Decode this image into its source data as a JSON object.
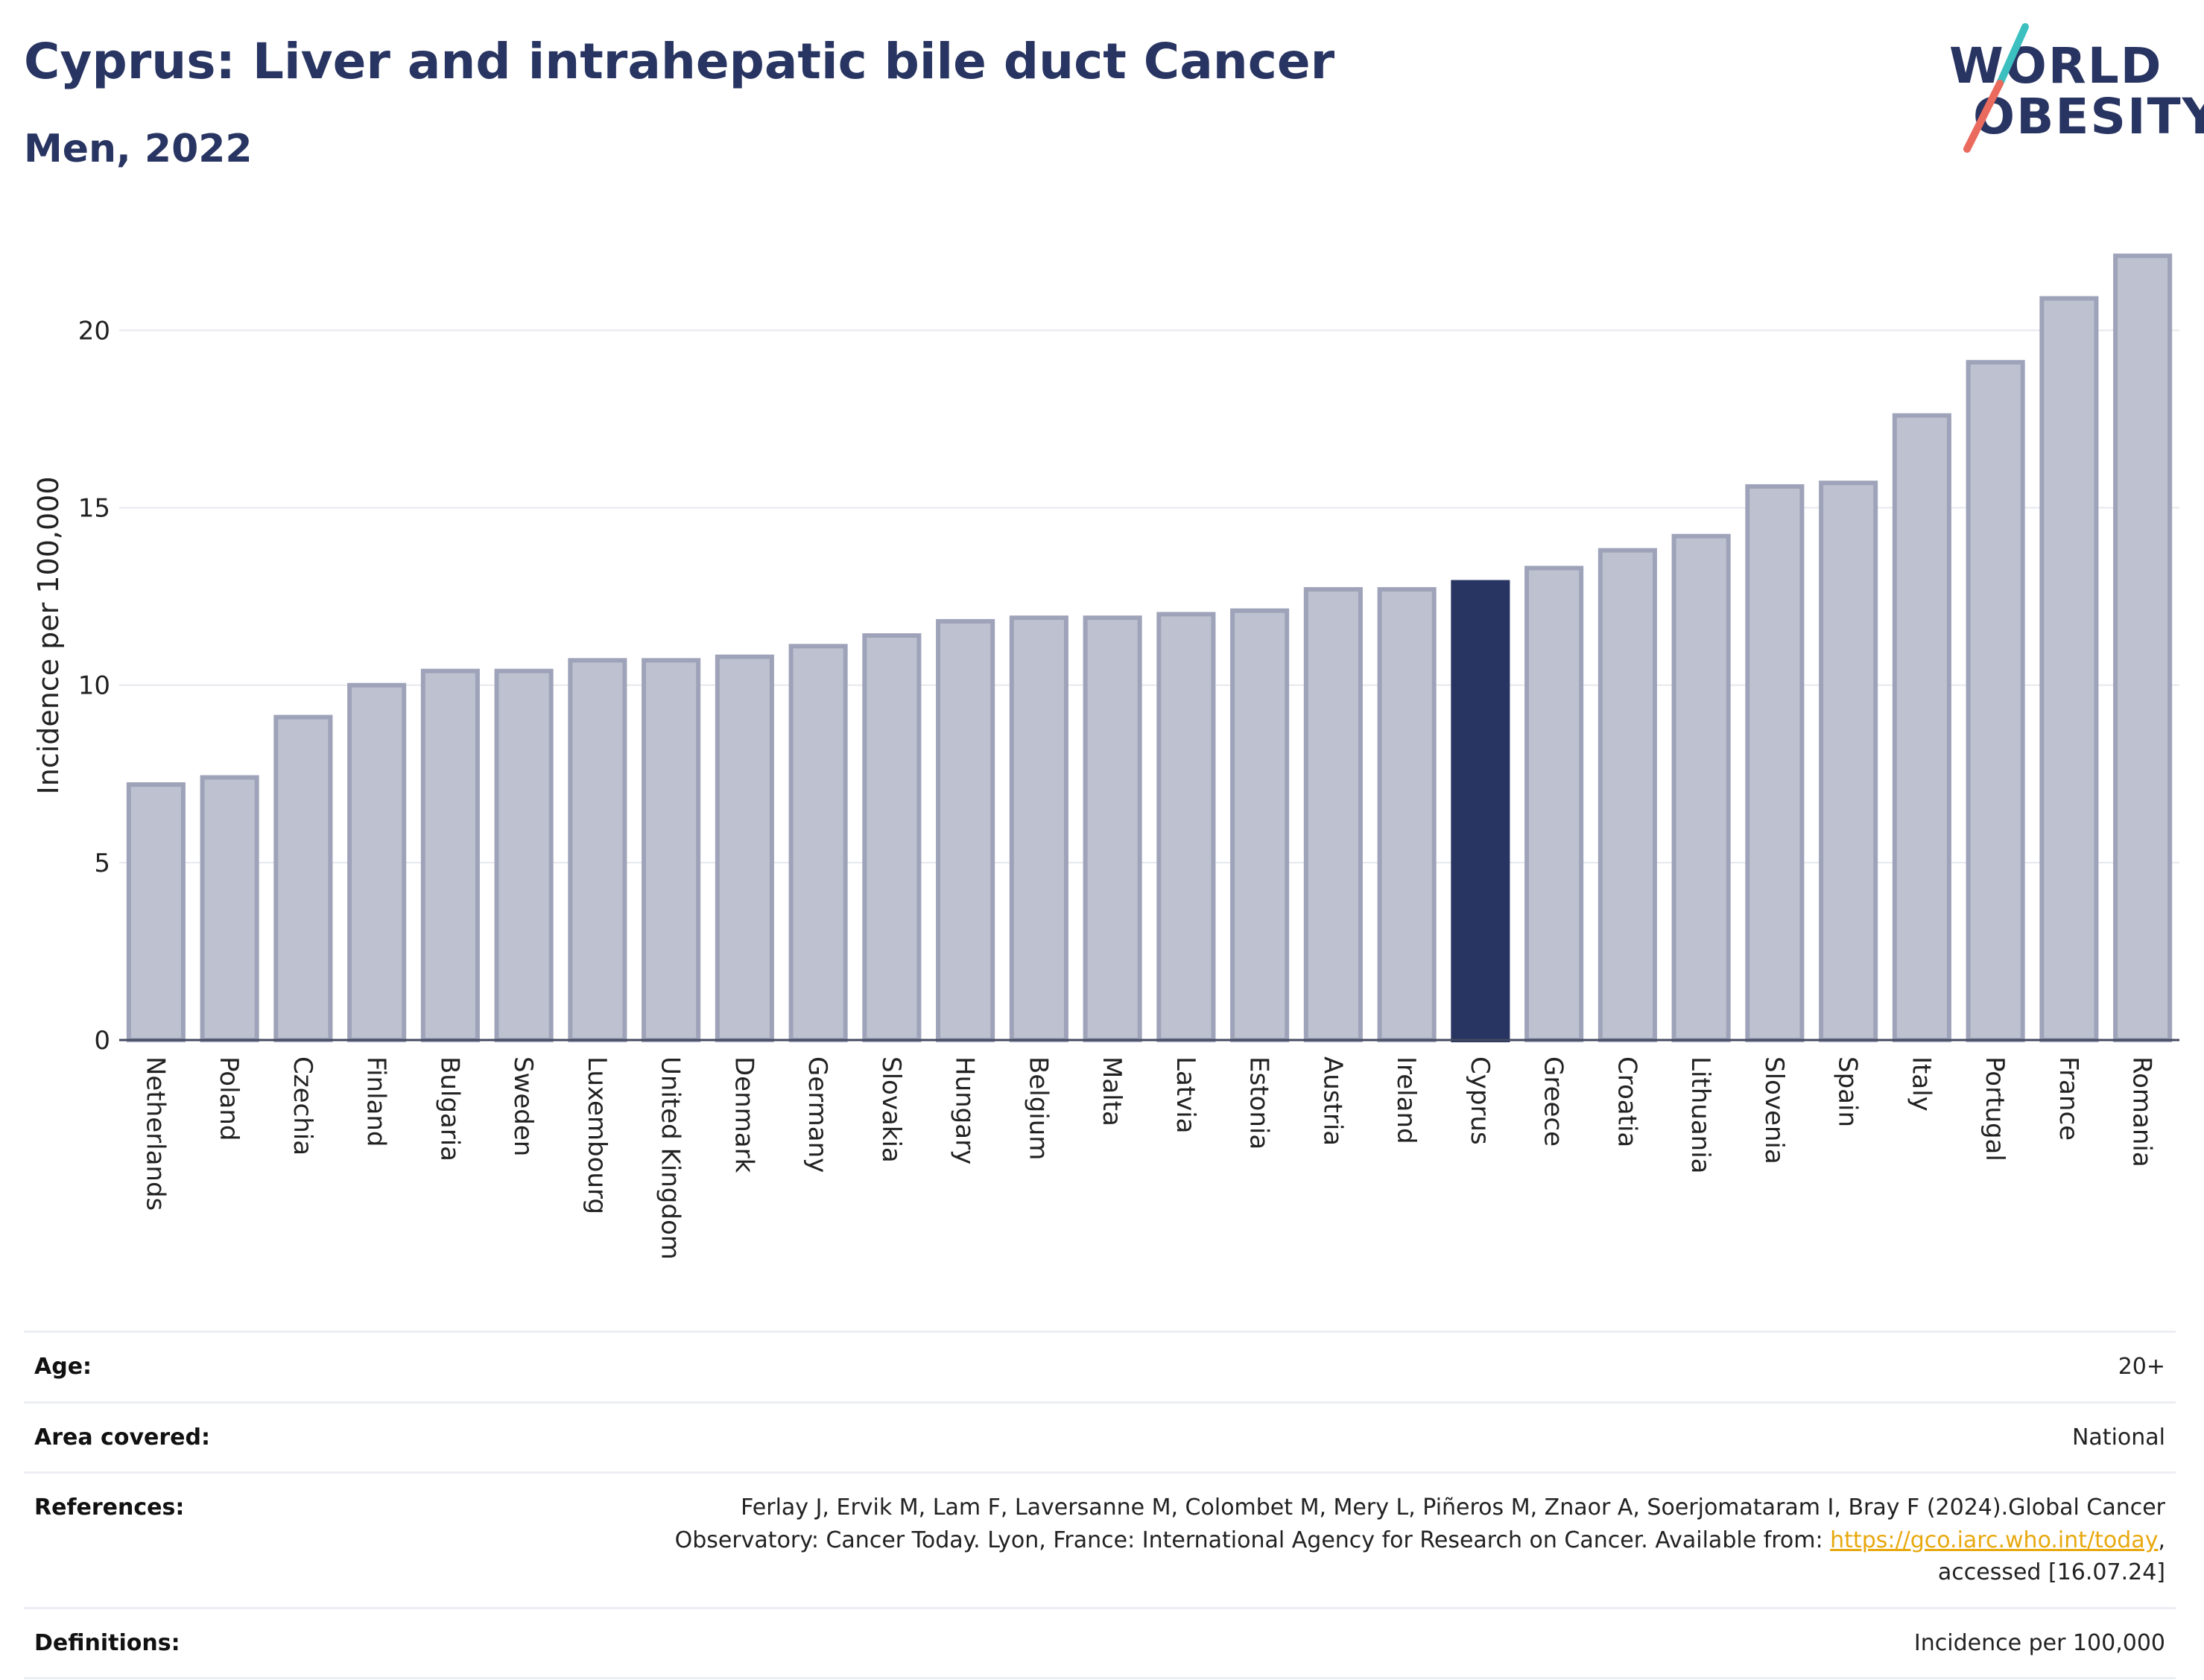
{
  "header": {
    "title": "Cyprus: Liver and intrahepatic bile duct Cancer",
    "subtitle": "Men, 2022"
  },
  "logo": {
    "line1": "WORLD",
    "line2": "OBESITY"
  },
  "colors": {
    "highlight": "#283461",
    "bar_fill": "#bec2d0",
    "bar_border": "#9ea3b9",
    "grid": "#e6e8ee",
    "logo_teal": "#3cbfbf",
    "logo_coral": "#ea6a5e"
  },
  "chart_data": {
    "type": "bar",
    "title": "Cyprus: Liver and intrahepatic bile duct Cancer",
    "subtitle": "Men, 2022",
    "xlabel": "",
    "ylabel": "Incidence per 100,000",
    "ylim": [
      0,
      22.8
    ],
    "yticks": [
      0,
      5,
      10,
      15,
      20
    ],
    "grid": true,
    "highlight": "Cyprus",
    "categories": [
      "Netherlands",
      "Poland",
      "Czechia",
      "Finland",
      "Bulgaria",
      "Sweden",
      "Luxembourg",
      "United Kingdom",
      "Denmark",
      "Germany",
      "Slovakia",
      "Hungary",
      "Belgium",
      "Malta",
      "Latvia",
      "Estonia",
      "Austria",
      "Ireland",
      "Cyprus",
      "Greece",
      "Croatia",
      "Lithuania",
      "Slovenia",
      "Spain",
      "Italy",
      "Portugal",
      "France",
      "Romania"
    ],
    "values": [
      7.2,
      7.4,
      9.1,
      10.0,
      10.4,
      10.4,
      10.7,
      10.7,
      10.8,
      11.1,
      11.4,
      11.8,
      11.9,
      11.9,
      12.0,
      12.1,
      12.7,
      12.7,
      12.9,
      13.3,
      13.8,
      14.2,
      15.6,
      15.7,
      17.6,
      19.1,
      20.9,
      22.1
    ]
  },
  "info": {
    "age_label": "Age:",
    "age_value": "20+",
    "area_label": "Area covered:",
    "area_value": "National",
    "references_label": "References:",
    "references_line1": "Ferlay J, Ervik M, Lam F, Laversanne M, Colombet M, Mery L, Piñeros M, Znaor A, Soerjomataram I, Bray F (2024).Global Cancer",
    "references_line2_prefix": "Observatory: Cancer Today. Lyon, France: International Agency for Research on Cancer. Available from: ",
    "references_link": "https://gco.iarc.who.int/today",
    "references_line2_suffix": ",",
    "references_line3": "accessed [16.07.24]",
    "definitions_label": "Definitions:",
    "definitions_value": "Incidence per 100,000"
  }
}
